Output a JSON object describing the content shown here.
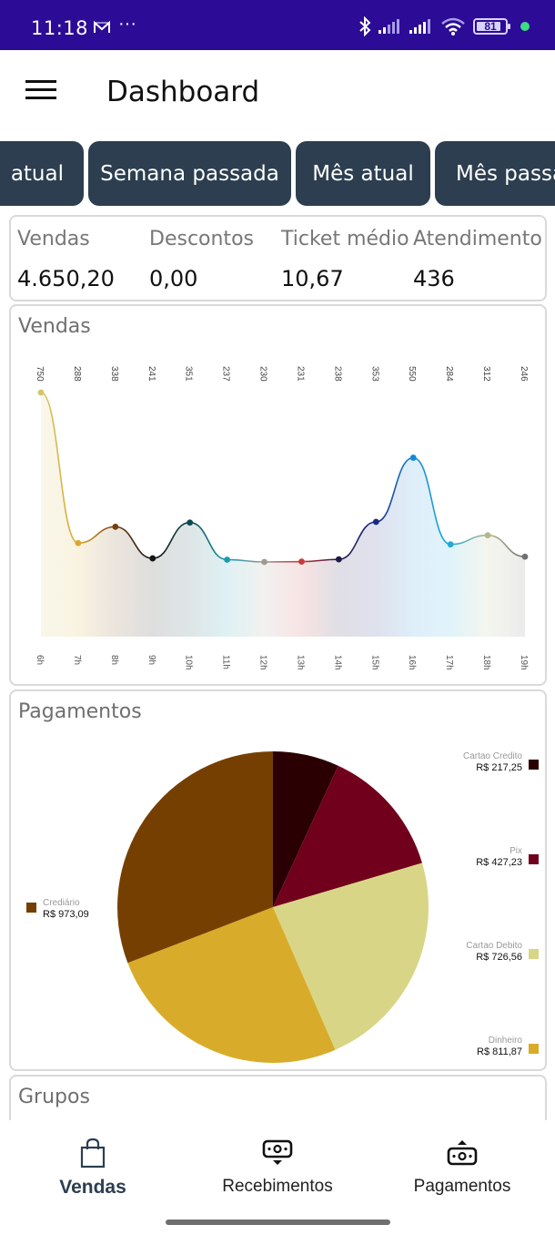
{
  "status_bar": {
    "time": "11:18",
    "notification_icons": [
      "gmail-icon",
      "more-dots-icon"
    ],
    "more": "···",
    "right_icons": [
      "bluetooth-icon",
      "signal-icon",
      "signal-icon",
      "wifi-icon"
    ],
    "battery": "81"
  },
  "app_bar": {
    "title": "Dashboard",
    "menu_icon": "hamburger-menu-icon"
  },
  "period_filters": [
    {
      "label": "Semana atual",
      "visible_text": "atual",
      "selected": false
    },
    {
      "label": "Semana passada",
      "selected": false
    },
    {
      "label": "Mês atual",
      "selected": false
    },
    {
      "label": "Mês passado",
      "visible_text": "Mês passa",
      "selected": false
    }
  ],
  "summary": [
    {
      "label": "Vendas",
      "value": "4.650,20"
    },
    {
      "label": "Descontos",
      "value": "0,00"
    },
    {
      "label": "Ticket médio",
      "value": "10,67"
    },
    {
      "label": "Atendimento",
      "value": "436"
    }
  ],
  "sales_card": {
    "title": "Vendas"
  },
  "payments_card": {
    "title": "Pagamentos"
  },
  "groups_card": {
    "title": "Grupos"
  },
  "colors": {
    "chip_bg": "#2c3e50",
    "status_bar": "#2c0b96",
    "active_nav": "#2c3e50"
  },
  "chart_data": [
    {
      "type": "area",
      "title": "Vendas",
      "xlabel": "",
      "ylabel": "",
      "categories": [
        "6h",
        "7h",
        "8h",
        "9h",
        "10h",
        "11h",
        "12h",
        "13h",
        "14h",
        "15h",
        "16h",
        "17h",
        "18h",
        "19h"
      ],
      "values": [
        750,
        288,
        338,
        241,
        351,
        237,
        230,
        231,
        238,
        353,
        550,
        284,
        312,
        246
      ],
      "point_colors": [
        "#d4c56a",
        "#d9a92b",
        "#74400a",
        "#141414",
        "#0e4a4f",
        "#1a9bb0",
        "#a09a93",
        "#c93a3a",
        "#201848",
        "#1a2a80",
        "#1588d8",
        "#22aad8",
        "#b8b88a",
        "#707070"
      ],
      "grid": false,
      "legend": "none",
      "data_labels_position": "top-rotated"
    },
    {
      "type": "pie",
      "title": "Pagamentos",
      "slices": [
        {
          "label": "Cartao Credito",
          "value": 217.25,
          "display": "R$ 217,25",
          "color": "#2a0002"
        },
        {
          "label": "Pix",
          "value": 427.23,
          "display": "R$ 427,23",
          "color": "#71001c"
        },
        {
          "label": "Cartao Debito",
          "value": 726.56,
          "display": "R$ 726,56",
          "color": "#d8d686"
        },
        {
          "label": "Dinheiro",
          "value": 811.87,
          "display": "R$ 811,87",
          "color": "#d8ac2a"
        },
        {
          "label": "Crediário",
          "value": 973.09,
          "display": "R$ 973,09",
          "color": "#763f02"
        }
      ],
      "legend": "sides"
    }
  ],
  "bottom_nav": [
    {
      "label": "Vendas",
      "icon": "shopping-bag-icon",
      "active": true
    },
    {
      "label": "Recebimentos",
      "icon": "money-receive-icon",
      "active": false
    },
    {
      "label": "Pagamentos",
      "icon": "money-send-icon",
      "active": false
    }
  ]
}
